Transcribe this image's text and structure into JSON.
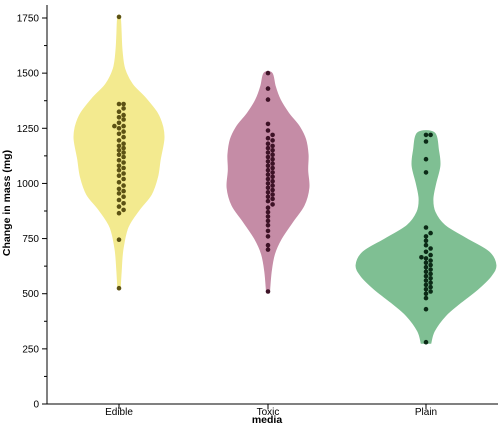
{
  "chart_data": {
    "type": "violin",
    "xlabel": "media",
    "ylabel": "Change in mass (mg)",
    "ylim": [
      0,
      1800
    ],
    "yticks": [
      0,
      250,
      500,
      750,
      1000,
      1250,
      1500,
      1750
    ],
    "categories": [
      "Edible",
      "Toxic",
      "Plain"
    ],
    "series": [
      {
        "category": "Edible",
        "fill": "#f3ea8f",
        "point_color": "#5c5214",
        "points": [
          1755,
          1360,
          1360,
          1340,
          1325,
          1310,
          1300,
          1290,
          1275,
          1260,
          1260,
          1250,
          1235,
          1225,
          1210,
          1195,
          1180,
          1170,
          1160,
          1150,
          1140,
          1130,
          1120,
          1105,
          1095,
          1080,
          1070,
          1060,
          1045,
          1035,
          1020,
          1005,
          990,
          975,
          965,
          955,
          940,
          925,
          910,
          895,
          880,
          865,
          745,
          525
        ],
        "density": [
          [
            525,
            0.03
          ],
          [
            600,
            0.05
          ],
          [
            700,
            0.09
          ],
          [
            800,
            0.2
          ],
          [
            880,
            0.45
          ],
          [
            950,
            0.72
          ],
          [
            1030,
            0.86
          ],
          [
            1110,
            0.92
          ],
          [
            1200,
            1.0
          ],
          [
            1260,
            0.97
          ],
          [
            1320,
            0.85
          ],
          [
            1390,
            0.58
          ],
          [
            1450,
            0.3
          ],
          [
            1520,
            0.13
          ],
          [
            1600,
            0.07
          ],
          [
            1680,
            0.05
          ],
          [
            1755,
            0.03
          ]
        ]
      },
      {
        "category": "Toxic",
        "fill": "#c58ca6",
        "point_color": "#3d1226",
        "points": [
          1500,
          1430,
          1380,
          1270,
          1240,
          1220,
          1205,
          1195,
          1180,
          1170,
          1160,
          1150,
          1140,
          1130,
          1120,
          1110,
          1100,
          1090,
          1080,
          1070,
          1060,
          1050,
          1040,
          1030,
          1020,
          1010,
          1000,
          990,
          980,
          970,
          960,
          950,
          940,
          930,
          920,
          905,
          890,
          870,
          850,
          830,
          810,
          785,
          760,
          720,
          700,
          510
        ],
        "density": [
          [
            510,
            0.04
          ],
          [
            600,
            0.08
          ],
          [
            680,
            0.16
          ],
          [
            750,
            0.33
          ],
          [
            830,
            0.62
          ],
          [
            900,
            0.88
          ],
          [
            980,
            1.0
          ],
          [
            1060,
            0.97
          ],
          [
            1130,
            0.98
          ],
          [
            1200,
            0.92
          ],
          [
            1260,
            0.76
          ],
          [
            1320,
            0.5
          ],
          [
            1380,
            0.3
          ],
          [
            1440,
            0.18
          ],
          [
            1500,
            0.1
          ]
        ]
      },
      {
        "category": "Plain",
        "fill": "#7fbf93",
        "point_color": "#0b2a16",
        "points": [
          1220,
          1220,
          1190,
          1110,
          1050,
          800,
          775,
          760,
          740,
          720,
          705,
          690,
          675,
          665,
          660,
          650,
          640,
          630,
          620,
          610,
          600,
          590,
          580,
          570,
          560,
          550,
          540,
          530,
          520,
          510,
          500,
          480,
          430,
          280
        ],
        "density": [
          [
            275,
            0.07
          ],
          [
            330,
            0.12
          ],
          [
            400,
            0.28
          ],
          [
            460,
            0.5
          ],
          [
            520,
            0.74
          ],
          [
            580,
            0.93
          ],
          [
            630,
            1.0
          ],
          [
            690,
            0.9
          ],
          [
            750,
            0.58
          ],
          [
            810,
            0.27
          ],
          [
            870,
            0.13
          ],
          [
            930,
            0.1
          ],
          [
            1000,
            0.14
          ],
          [
            1080,
            0.2
          ],
          [
            1150,
            0.18
          ],
          [
            1230,
            0.12
          ]
        ]
      }
    ]
  }
}
